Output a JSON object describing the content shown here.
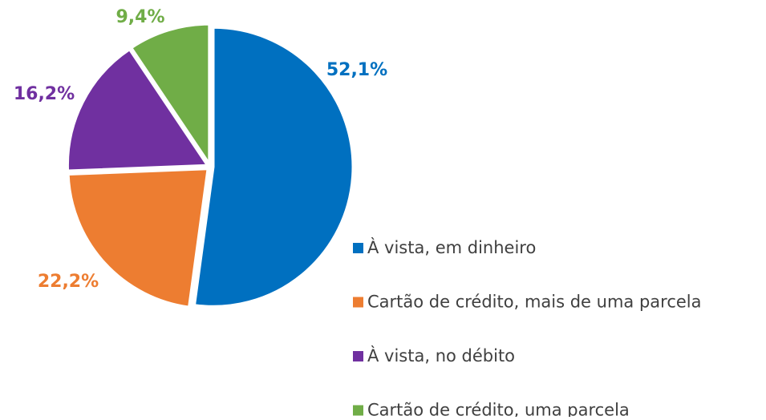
{
  "chart_data": {
    "type": "pie",
    "categories": [
      "À vista, em dinheiro",
      "Cartão de crédito, mais de uma parcela",
      "À vista, no débito",
      "Cartão de crédito, uma parcela"
    ],
    "values": [
      52.1,
      22.2,
      16.2,
      9.4
    ],
    "value_labels": [
      "52,1%",
      "22,2%",
      "16,2%",
      "9,4%"
    ],
    "colors": [
      "#0070c0",
      "#ed7d31",
      "#7030a0",
      "#70ad47"
    ],
    "legend": "right"
  }
}
